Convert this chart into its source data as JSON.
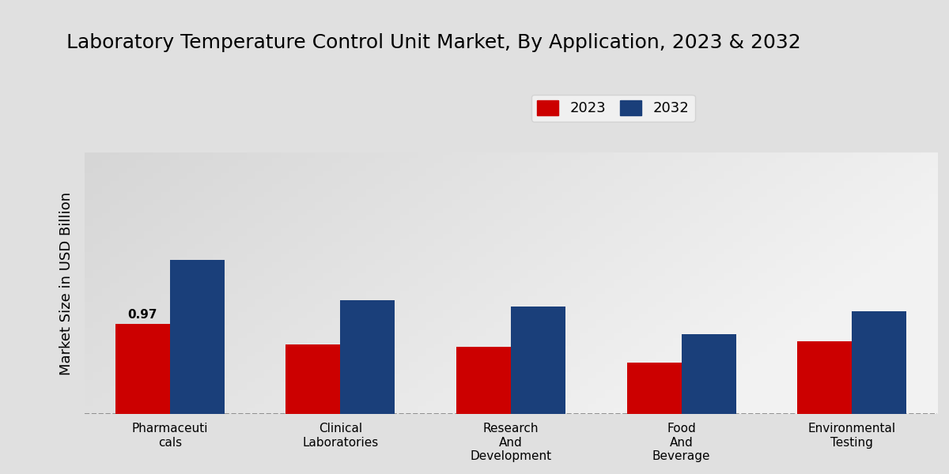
{
  "title": "Laboratory Temperature Control Unit Market, By Application, 2023 & 2032",
  "ylabel": "Market Size in USD Billion",
  "categories": [
    "Pharmaceuti\ncals",
    "Clinical\nLaboratories",
    "Research\nAnd\nDevelopment",
    "Food\nAnd\nBeverage",
    "Environmental\nTesting"
  ],
  "values_2023": [
    0.97,
    0.75,
    0.72,
    0.55,
    0.78
  ],
  "values_2032": [
    1.65,
    1.22,
    1.15,
    0.86,
    1.1
  ],
  "color_2023": "#cc0000",
  "color_2032": "#1a3f7a",
  "annotation_value": "0.97",
  "annotation_bar": 0,
  "legend_labels": [
    "2023",
    "2032"
  ],
  "bar_width": 0.32,
  "ylim": [
    0,
    2.8
  ],
  "bg_color_light": "#f0f0f0",
  "bg_color_dark": "#d0d0d0",
  "title_fontsize": 18,
  "axis_label_fontsize": 13,
  "tick_label_fontsize": 11,
  "legend_fontsize": 13
}
